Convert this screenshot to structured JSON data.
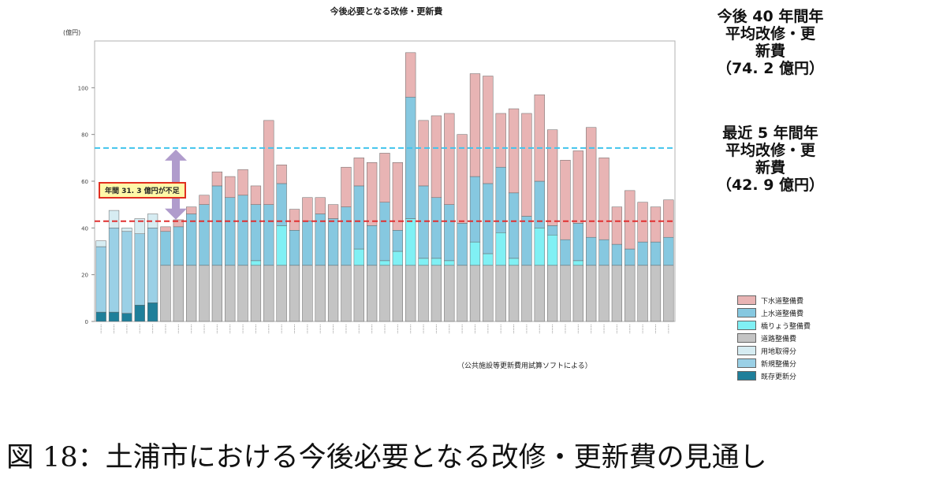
{
  "caption": "図 18：土浦市における今後必要となる改修・更新費の見通し",
  "note_40": {
    "line1": "今後 40 年間年",
    "line2": "平均改修・更",
    "line3": "新費",
    "value": "（74. 2 億円）"
  },
  "note_5": {
    "line1": "最近 5 年間年",
    "line2": "平均改修・更",
    "line3": "新費",
    "value": "（42. 9 億円）"
  },
  "shortfall_label": "年間 31. 3 億円が不足",
  "source_note": "（公共施設等更新費用試算ソフトによる）",
  "colors": {
    "sewer": "#e8b4b4",
    "water": "#86c8e0",
    "bridge": "#80f0f4",
    "road": "#c4c4c4",
    "land": "#d6ecf2",
    "new": "#9ad0e6",
    "existing": "#1f7f9a",
    "ref_74": "#40c4ec",
    "ref_43": "#e03030",
    "arrow": "#b09ccc"
  },
  "chart_data": {
    "type": "bar",
    "title": "今後必要となる改修・更新費",
    "ylabel": "(億円)",
    "ylim": [
      0,
      120
    ],
    "yticks": [
      0,
      20,
      40,
      60,
      80,
      100
    ],
    "reference_lines": [
      {
        "value": 74.2,
        "color": "#40c4ec"
      },
      {
        "value": 42.9,
        "color": "#e03030"
      }
    ],
    "legend": [
      "下水道整備費",
      "上水道整備費",
      "橋りょう整備費",
      "道路整備費",
      "用地取得分",
      "新規整備分",
      "既存更新分"
    ],
    "legend_position": "right",
    "bars": [
      {
        "existing": 4,
        "new": 28,
        "land": 2.5
      },
      {
        "existing": 4,
        "new": 36,
        "land": 7.5
      },
      {
        "existing": 3.5,
        "new": 35,
        "land": 1.5
      },
      {
        "existing": 7,
        "new": 30.5,
        "land": 6.5
      },
      {
        "existing": 8,
        "new": 32,
        "land": 6
      },
      {
        "road": 24,
        "water": 14.5,
        "sewer": 2
      },
      {
        "road": 24,
        "water": 16.5,
        "sewer": 3
      },
      {
        "road": 24,
        "water": 22,
        "sewer": 3
      },
      {
        "road": 24,
        "water": 26,
        "sewer": 4
      },
      {
        "road": 24,
        "water": 34,
        "sewer": 6
      },
      {
        "road": 24,
        "water": 29,
        "sewer": 9
      },
      {
        "road": 24,
        "water": 30,
        "sewer": 11
      },
      {
        "road": 24,
        "bridge": 2,
        "water": 24,
        "sewer": 8
      },
      {
        "road": 24,
        "water": 26,
        "sewer": 36
      },
      {
        "road": 24,
        "bridge": 17,
        "water": 18,
        "sewer": 8
      },
      {
        "road": 24,
        "water": 15,
        "sewer": 9
      },
      {
        "road": 24,
        "water": 19,
        "sewer": 10
      },
      {
        "road": 24,
        "water": 22,
        "sewer": 7
      },
      {
        "road": 24,
        "water": 20,
        "sewer": 6
      },
      {
        "road": 24,
        "water": 25,
        "sewer": 17
      },
      {
        "road": 24,
        "bridge": 7,
        "water": 27,
        "sewer": 12
      },
      {
        "road": 24,
        "water": 17,
        "sewer": 27
      },
      {
        "road": 24,
        "bridge": 2,
        "water": 25,
        "sewer": 21
      },
      {
        "road": 24,
        "bridge": 6,
        "water": 9,
        "sewer": 29
      },
      {
        "road": 24,
        "bridge": 20,
        "water": 52,
        "sewer": 19
      },
      {
        "road": 24,
        "bridge": 3,
        "water": 31,
        "sewer": 28
      },
      {
        "road": 24,
        "bridge": 3,
        "water": 26,
        "sewer": 35
      },
      {
        "road": 24,
        "bridge": 2,
        "water": 24,
        "sewer": 39
      },
      {
        "road": 24,
        "water": 18,
        "sewer": 38
      },
      {
        "road": 24,
        "bridge": 10,
        "water": 28,
        "sewer": 44
      },
      {
        "road": 24,
        "bridge": 5,
        "water": 30,
        "sewer": 46
      },
      {
        "road": 24,
        "bridge": 14,
        "water": 28,
        "sewer": 23
      },
      {
        "road": 24,
        "bridge": 3,
        "water": 28,
        "sewer": 36
      },
      {
        "road": 24,
        "water": 21,
        "sewer": 44
      },
      {
        "road": 24,
        "bridge": 16,
        "water": 20,
        "sewer": 37
      },
      {
        "road": 24,
        "bridge": 13,
        "water": 4,
        "sewer": 41
      },
      {
        "road": 24,
        "water": 11,
        "sewer": 34
      },
      {
        "road": 24,
        "bridge": 2,
        "water": 16,
        "sewer": 31
      },
      {
        "road": 24,
        "water": 12,
        "sewer": 47
      },
      {
        "road": 24,
        "water": 11,
        "sewer": 35
      },
      {
        "road": 24,
        "water": 9,
        "sewer": 16
      },
      {
        "road": 24,
        "water": 7,
        "sewer": 25
      },
      {
        "road": 24,
        "water": 10,
        "sewer": 17
      },
      {
        "road": 24,
        "water": 10,
        "sewer": 15
      },
      {
        "road": 24,
        "water": 12,
        "sewer": 16
      }
    ]
  }
}
